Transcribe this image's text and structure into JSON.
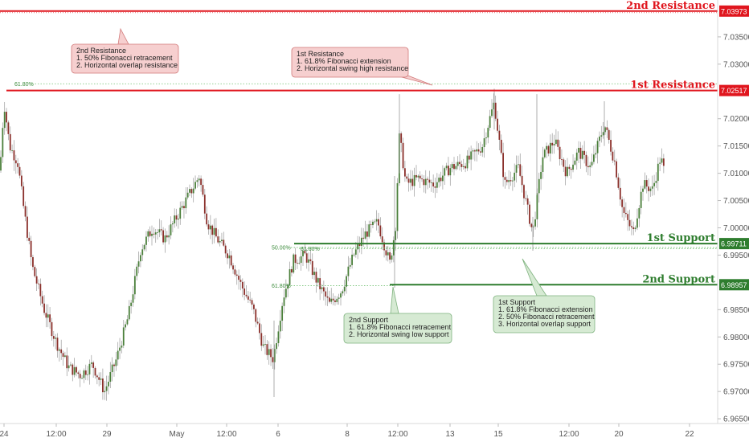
{
  "chart_data": {
    "type": "candlestick",
    "y_ticks": [
      "7.03500",
      "7.03000",
      "7.02000",
      "7.01500",
      "7.01000",
      "7.00500",
      "7.00000",
      "6.99500",
      "6.98500",
      "6.98000",
      "6.97500",
      "6.97000",
      "6.96500"
    ],
    "x_ticks": [
      "24",
      "12:00",
      "29",
      "May",
      "12:00",
      "6",
      "8",
      "12:00",
      "13",
      "15",
      "12:00",
      "20",
      "22"
    ],
    "ylim": [
      6.9625,
      7.042
    ],
    "levels": [
      {
        "name": "2nd Resistance",
        "value": 7.03973,
        "value_label": "7.03973",
        "color": "#e0161e"
      },
      {
        "name": "1st Resistance",
        "value": 7.02517,
        "value_label": "7.02517",
        "color": "#e0161e"
      },
      {
        "name": "1st Support",
        "value": 6.99711,
        "value_label": "6.99711",
        "color": "#2e7d2e"
      },
      {
        "name": "2nd Support",
        "value": 6.98957,
        "value_label": "6.98957",
        "color": "#2e7d2e"
      }
    ],
    "fib_lines": [
      {
        "label": "61.80%",
        "value": 7.0264
      },
      {
        "label": "50.00%",
        "value": 6.9964
      },
      {
        "label": "61.80%",
        "value": 6.99615
      },
      {
        "label": "61.80%",
        "value": 6.9894
      }
    ],
    "annotations": [
      {
        "id": "res2",
        "title": "2nd Resistance",
        "lines": [
          "1. 50% Fibonacci retracement",
          "2. Horizontal overlap resistance"
        ],
        "color": "red"
      },
      {
        "id": "res1",
        "title": "1st Resistance",
        "lines": [
          "1. 61.8% Fibonacci extension",
          "2. Horizontal swing high resistance"
        ],
        "color": "red"
      },
      {
        "id": "sup2",
        "title": "2nd Support",
        "lines": [
          "1. 61.8% Fibonacci retracement",
          "2. Horizontal swing low support"
        ],
        "color": "green"
      },
      {
        "id": "sup1",
        "title": "1st Support",
        "lines": [
          "1. 61.8% Fibonacci extension",
          "2. 50% Fibonacci retracement",
          "3. Horizontal overlap support"
        ],
        "color": "green"
      }
    ],
    "anchors": [
      {
        "x": 0,
        "y": 7.0105
      },
      {
        "x": 5,
        "y": 7.023
      },
      {
        "x": 12,
        "y": 7.015
      },
      {
        "x": 22,
        "y": 7.012
      },
      {
        "x": 30,
        "y": 7.003
      },
      {
        "x": 40,
        "y": 6.993
      },
      {
        "x": 55,
        "y": 6.985
      },
      {
        "x": 70,
        "y": 6.979
      },
      {
        "x": 85,
        "y": 6.9745
      },
      {
        "x": 100,
        "y": 6.973
      },
      {
        "x": 115,
        "y": 6.975
      },
      {
        "x": 130,
        "y": 6.97
      },
      {
        "x": 145,
        "y": 6.976
      },
      {
        "x": 160,
        "y": 6.984
      },
      {
        "x": 175,
        "y": 6.996
      },
      {
        "x": 190,
        "y": 7.0
      },
      {
        "x": 205,
        "y": 6.998
      },
      {
        "x": 220,
        "y": 7.002
      },
      {
        "x": 235,
        "y": 7.006
      },
      {
        "x": 248,
        "y": 7.0095
      },
      {
        "x": 258,
        "y": 7.001
      },
      {
        "x": 270,
        "y": 6.998
      },
      {
        "x": 285,
        "y": 6.995
      },
      {
        "x": 300,
        "y": 6.9895
      },
      {
        "x": 315,
        "y": 6.985
      },
      {
        "x": 328,
        "y": 6.978
      },
      {
        "x": 340,
        "y": 6.976
      },
      {
        "x": 352,
        "y": 6.987
      },
      {
        "x": 365,
        "y": 6.994
      },
      {
        "x": 380,
        "y": 6.995
      },
      {
        "x": 395,
        "y": 6.99
      },
      {
        "x": 410,
        "y": 6.986
      },
      {
        "x": 425,
        "y": 6.9885
      },
      {
        "x": 440,
        "y": 6.995
      },
      {
        "x": 455,
        "y": 6.999
      },
      {
        "x": 470,
        "y": 7.001
      },
      {
        "x": 485,
        "y": 6.9935
      },
      {
        "x": 492,
        "y": 7.0
      },
      {
        "x": 497,
        "y": 7.017
      },
      {
        "x": 505,
        "y": 7.008
      },
      {
        "x": 520,
        "y": 7.009
      },
      {
        "x": 540,
        "y": 7.008
      },
      {
        "x": 560,
        "y": 7.011
      },
      {
        "x": 580,
        "y": 7.012
      },
      {
        "x": 600,
        "y": 7.015
      },
      {
        "x": 615,
        "y": 7.023
      },
      {
        "x": 628,
        "y": 7.008
      },
      {
        "x": 645,
        "y": 7.011
      },
      {
        "x": 663,
        "y": 6.999
      },
      {
        "x": 675,
        "y": 7.013
      },
      {
        "x": 690,
        "y": 7.016
      },
      {
        "x": 705,
        "y": 7.01
      },
      {
        "x": 720,
        "y": 7.014
      },
      {
        "x": 735,
        "y": 7.011
      },
      {
        "x": 752,
        "y": 7.019
      },
      {
        "x": 765,
        "y": 7.012
      },
      {
        "x": 775,
        "y": 7.003
      },
      {
        "x": 788,
        "y": 6.999
      },
      {
        "x": 800,
        "y": 7.008
      },
      {
        "x": 812,
        "y": 7.007
      },
      {
        "x": 822,
        "y": 7.013
      },
      {
        "x": 827,
        "y": 7.01
      }
    ]
  }
}
